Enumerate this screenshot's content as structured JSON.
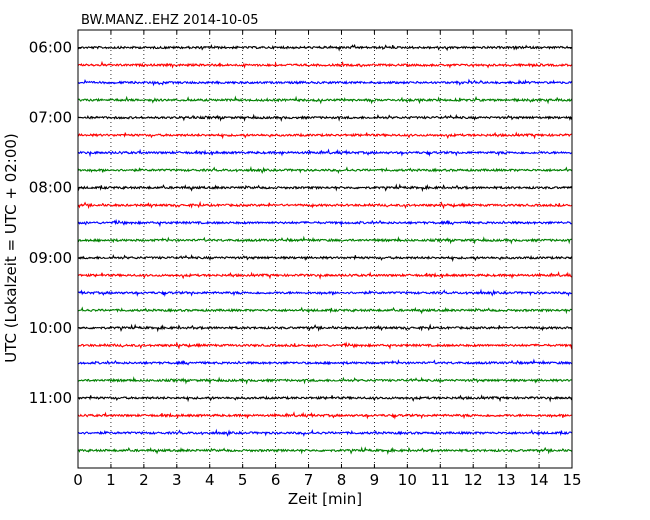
{
  "chart_data": {
    "type": "line",
    "title": "BW.MANZ..EHZ 2014-10-05",
    "xlabel": "Zeit  [min]",
    "ylabel": "UTC (Lokalzeit = UTC + 02:00)",
    "xlim": [
      0,
      15
    ],
    "xticks": [
      "0",
      "1",
      "2",
      "3",
      "4",
      "5",
      "6",
      "7",
      "8",
      "9",
      "10",
      "11",
      "12",
      "13",
      "14",
      "15"
    ],
    "ylim_minutes": [
      345,
      720
    ],
    "yticks": [
      "06:00",
      "07:00",
      "08:00",
      "09:00",
      "10:00",
      "11:00"
    ],
    "ytick_minutes": [
      360,
      420,
      480,
      540,
      600,
      660
    ],
    "row_interval_minutes": 15,
    "grid": "vertical dotted at each minute",
    "colors": [
      "#000000",
      "#ff0000",
      "#0000ff",
      "#008000"
    ],
    "traces": [
      {
        "start": "06:00",
        "color": "#000000"
      },
      {
        "start": "06:15",
        "color": "#ff0000"
      },
      {
        "start": "06:30",
        "color": "#0000ff"
      },
      {
        "start": "06:45",
        "color": "#008000"
      },
      {
        "start": "07:00",
        "color": "#000000"
      },
      {
        "start": "07:15",
        "color": "#ff0000"
      },
      {
        "start": "07:30",
        "color": "#0000ff"
      },
      {
        "start": "07:45",
        "color": "#008000"
      },
      {
        "start": "08:00",
        "color": "#000000"
      },
      {
        "start": "08:15",
        "color": "#ff0000"
      },
      {
        "start": "08:30",
        "color": "#0000ff"
      },
      {
        "start": "08:45",
        "color": "#008000"
      },
      {
        "start": "09:00",
        "color": "#000000"
      },
      {
        "start": "09:15",
        "color": "#ff0000"
      },
      {
        "start": "09:30",
        "color": "#0000ff"
      },
      {
        "start": "09:45",
        "color": "#008000"
      },
      {
        "start": "10:00",
        "color": "#000000"
      },
      {
        "start": "10:15",
        "color": "#ff0000"
      },
      {
        "start": "10:30",
        "color": "#0000ff"
      },
      {
        "start": "10:45",
        "color": "#008000"
      },
      {
        "start": "11:00",
        "color": "#000000"
      },
      {
        "start": "11:15",
        "color": "#ff0000"
      },
      {
        "start": "11:30",
        "color": "#0000ff"
      },
      {
        "start": "11:45",
        "color": "#008000"
      }
    ]
  }
}
